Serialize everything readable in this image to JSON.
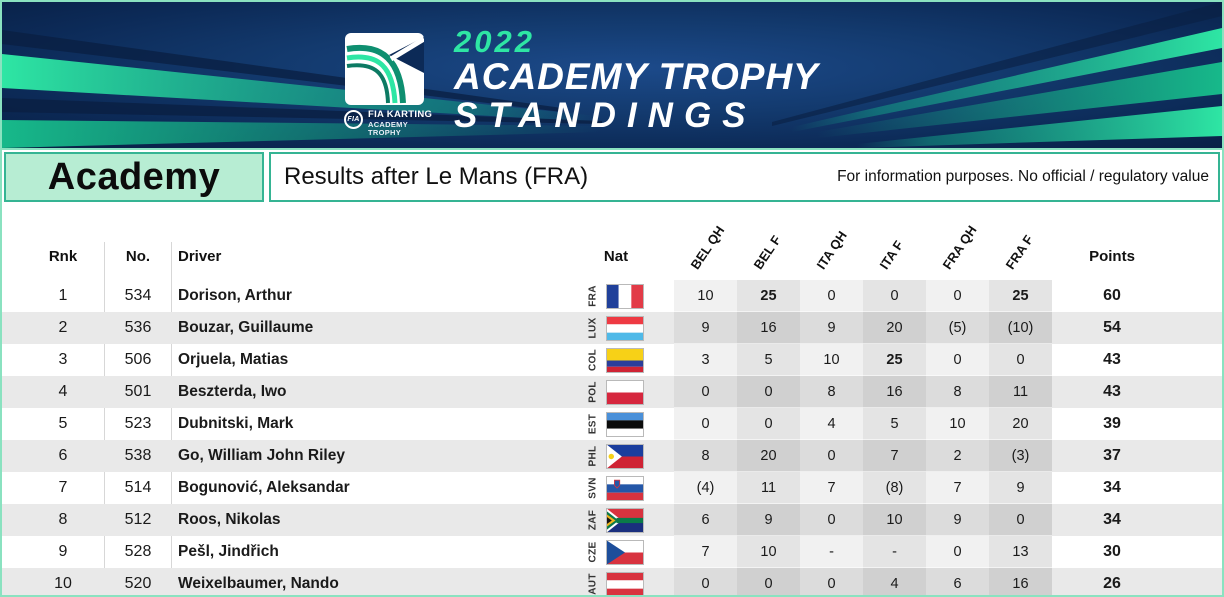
{
  "banner": {
    "year": "2022",
    "title_line1": "ACADEMY TROPHY",
    "title_line2": "STANDINGS",
    "logo": {
      "org": "FIA",
      "line1": "FIA KARTING",
      "line2": "ACADEMY",
      "line3": "TROPHY"
    },
    "colors": {
      "background": "#0c2a57",
      "accent_green": "#2ee6a4",
      "accent_teal": "#14a388"
    }
  },
  "header": {
    "category": "Academy",
    "subtitle": "Results after Le Mans (FRA)",
    "disclaimer": "For information purposes. No official / regulatory value",
    "category_bg": "#b7edd3",
    "border_color": "#35b493"
  },
  "table": {
    "columns": {
      "rank": "Rnk",
      "number": "No.",
      "driver": "Driver",
      "nat": "Nat",
      "points": "Points"
    },
    "race_columns": [
      "BEL QH",
      "BEL F",
      "ITA QH",
      "ITA F",
      "FRA QH",
      "FRA F"
    ],
    "stripe_color": "#e9e9e9",
    "rows": [
      {
        "rank": "1",
        "number": "534",
        "driver": "Dorison, Arthur",
        "nat": "FRA",
        "results": [
          "10",
          "25",
          "0",
          "0",
          "0",
          "25"
        ],
        "points": "60"
      },
      {
        "rank": "2",
        "number": "536",
        "driver": "Bouzar, Guillaume",
        "nat": "LUX",
        "results": [
          "9",
          "16",
          "9",
          "20",
          "(5)",
          "(10)"
        ],
        "points": "54"
      },
      {
        "rank": "3",
        "number": "506",
        "driver": "Orjuela, Matias",
        "nat": "COL",
        "results": [
          "3",
          "5",
          "10",
          "25",
          "0",
          "0"
        ],
        "points": "43"
      },
      {
        "rank": "4",
        "number": "501",
        "driver": "Beszterda, Iwo",
        "nat": "POL",
        "results": [
          "0",
          "0",
          "8",
          "16",
          "8",
          "11"
        ],
        "points": "43"
      },
      {
        "rank": "5",
        "number": "523",
        "driver": "Dubnitski, Mark",
        "nat": "EST",
        "results": [
          "0",
          "0",
          "4",
          "5",
          "10",
          "20"
        ],
        "points": "39"
      },
      {
        "rank": "6",
        "number": "538",
        "driver": "Go, William John Riley",
        "nat": "PHL",
        "results": [
          "8",
          "20",
          "0",
          "7",
          "2",
          "(3)"
        ],
        "points": "37"
      },
      {
        "rank": "7",
        "number": "514",
        "driver": "Bogunović, Aleksandar",
        "nat": "SVN",
        "results": [
          "(4)",
          "11",
          "7",
          "(8)",
          "7",
          "9"
        ],
        "points": "34"
      },
      {
        "rank": "8",
        "number": "512",
        "driver": "Roos, Nikolas",
        "nat": "ZAF",
        "results": [
          "6",
          "9",
          "0",
          "10",
          "9",
          "0"
        ],
        "points": "34"
      },
      {
        "rank": "9",
        "number": "528",
        "driver": "Pešl, Jindřich",
        "nat": "CZE",
        "results": [
          "7",
          "10",
          "-",
          "-",
          "0",
          "13"
        ],
        "points": "30"
      },
      {
        "rank": "10",
        "number": "520",
        "driver": "Weixelbaumer, Nando",
        "nat": "AUT",
        "results": [
          "0",
          "0",
          "0",
          "4",
          "6",
          "16"
        ],
        "points": "26"
      }
    ]
  }
}
